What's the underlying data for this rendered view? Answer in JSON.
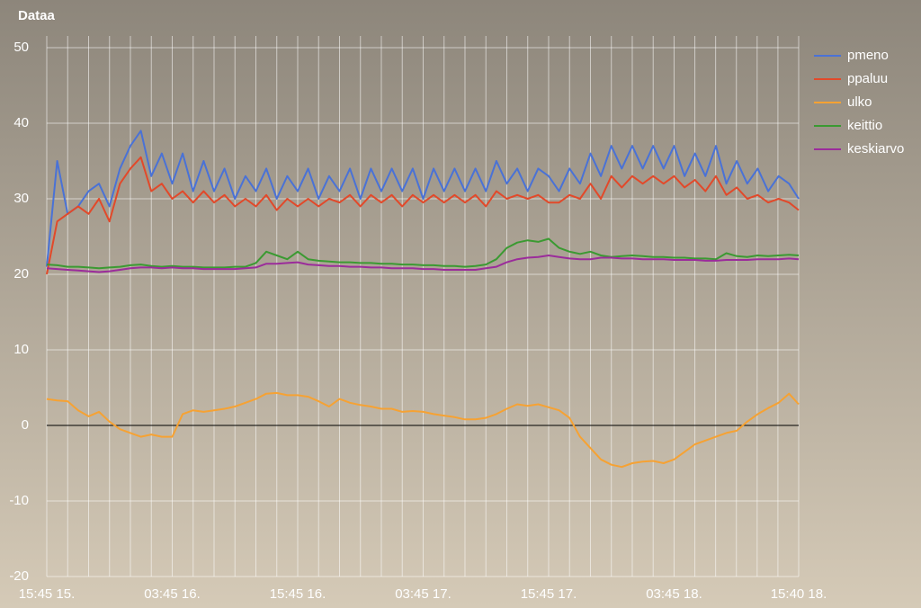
{
  "chart_data": {
    "type": "line",
    "title": "Dataa",
    "x": [
      0,
      1,
      2,
      3,
      4,
      5,
      6,
      7,
      8,
      9,
      10,
      11,
      12,
      13,
      14,
      15,
      16,
      17,
      18,
      19,
      20,
      21,
      22,
      23,
      24,
      25,
      26,
      27,
      28,
      29,
      30,
      31,
      32,
      33,
      34,
      35,
      36,
      37,
      38,
      39,
      40,
      41,
      42,
      43,
      44,
      45,
      46,
      47,
      48,
      49,
      50,
      51,
      52,
      53,
      54,
      55,
      56,
      57,
      58,
      59,
      60,
      61,
      62,
      63,
      64,
      65,
      66,
      67,
      68,
      69,
      70,
      71,
      71.917
    ],
    "series": [
      {
        "name": "pmeno",
        "color": "#4a72d6",
        "values": [
          21,
          35,
          28,
          29,
          31,
          32,
          29,
          34,
          37,
          39,
          33,
          36,
          32,
          36,
          31,
          35,
          31,
          34,
          30,
          33,
          31,
          34,
          30,
          33,
          31,
          34,
          30,
          33,
          31,
          34,
          30,
          34,
          31,
          34,
          31,
          34,
          30,
          34,
          31,
          34,
          31,
          34,
          31,
          35,
          32,
          34,
          31,
          34,
          33,
          31,
          34,
          32,
          36,
          33,
          37,
          34,
          37,
          34,
          37,
          34,
          37,
          33,
          36,
          33,
          37,
          32,
          35,
          32,
          34,
          31,
          33,
          32,
          30
        ]
      },
      {
        "name": "ppaluu",
        "color": "#e2492a",
        "values": [
          20,
          27,
          28,
          29,
          28,
          30,
          27,
          32,
          34,
          35.5,
          31,
          32,
          30,
          31,
          29.5,
          31,
          29.5,
          30.5,
          29,
          30,
          29,
          30.5,
          28.5,
          30,
          29,
          30,
          29,
          30,
          29.5,
          30.5,
          29,
          30.5,
          29.5,
          30.5,
          29,
          30.5,
          29.5,
          30.5,
          29.5,
          30.5,
          29.5,
          30.5,
          29,
          31,
          30,
          30.5,
          30,
          30.5,
          29.5,
          29.5,
          30.5,
          30,
          32,
          30,
          33,
          31.5,
          33,
          32,
          33,
          32,
          33,
          31.5,
          32.5,
          31,
          33,
          30.5,
          31.5,
          30,
          30.5,
          29.5,
          30,
          29.5,
          28.5
        ]
      },
      {
        "name": "ulko",
        "color": "#f6a233",
        "values": [
          3.5,
          3.3,
          3.2,
          2,
          1.2,
          1.8,
          0.5,
          -0.5,
          -1,
          -1.5,
          -1.2,
          -1.5,
          -1.5,
          1.5,
          2,
          1.8,
          2,
          2.2,
          2.5,
          3,
          3.5,
          4.2,
          4.3,
          4,
          4,
          3.8,
          3.2,
          2.5,
          3.5,
          3,
          2.7,
          2.5,
          2.2,
          2.2,
          1.8,
          1.9,
          1.8,
          1.5,
          1.3,
          1.1,
          0.8,
          0.8,
          1,
          1.5,
          2.2,
          2.8,
          2.6,
          2.8,
          2.4,
          2,
          1,
          -1.5,
          -3,
          -4.5,
          -5.2,
          -5.5,
          -5,
          -4.8,
          -4.7,
          -5,
          -4.5,
          -3.5,
          -2.5,
          -2,
          -1.5,
          -1,
          -0.7,
          0.5,
          1.5,
          2.3,
          3,
          4.2,
          2.8
        ]
      },
      {
        "name": "keittio",
        "color": "#3b9a32",
        "values": [
          21.3,
          21.2,
          21,
          21,
          20.9,
          20.8,
          20.9,
          21,
          21.2,
          21.3,
          21.1,
          21,
          21.1,
          21,
          21,
          20.9,
          20.9,
          20.9,
          21,
          21,
          21.5,
          23,
          22.5,
          22,
          23,
          22,
          21.8,
          21.7,
          21.6,
          21.6,
          21.5,
          21.5,
          21.4,
          21.4,
          21.3,
          21.3,
          21.2,
          21.2,
          21.1,
          21.1,
          21,
          21.1,
          21.3,
          22,
          23.5,
          24.2,
          24.5,
          24.3,
          24.7,
          23.5,
          23,
          22.7,
          23,
          22.5,
          22.3,
          22.4,
          22.5,
          22.4,
          22.3,
          22.3,
          22.2,
          22.2,
          22.1,
          22.1,
          22,
          22.8,
          22.4,
          22.3,
          22.5,
          22.4,
          22.5,
          22.6,
          22.5
        ]
      },
      {
        "name": "keskiarvo",
        "color": "#9b2c9b",
        "values": [
          20.8,
          20.7,
          20.6,
          20.5,
          20.4,
          20.3,
          20.4,
          20.6,
          20.8,
          20.9,
          20.9,
          20.8,
          20.9,
          20.8,
          20.8,
          20.7,
          20.7,
          20.7,
          20.7,
          20.8,
          20.9,
          21.4,
          21.4,
          21.5,
          21.6,
          21.3,
          21.2,
          21.1,
          21.1,
          21,
          21,
          20.9,
          20.9,
          20.8,
          20.8,
          20.8,
          20.7,
          20.7,
          20.6,
          20.6,
          20.6,
          20.6,
          20.8,
          21,
          21.6,
          22,
          22.2,
          22.3,
          22.5,
          22.3,
          22.1,
          22,
          22,
          22.2,
          22.2,
          22.1,
          22.1,
          22,
          22,
          22,
          21.9,
          21.9,
          21.9,
          21.8,
          21.8,
          21.9,
          21.9,
          21.9,
          22,
          22,
          22,
          22.1,
          22
        ]
      }
    ],
    "xlim": [
      0,
      71.917
    ],
    "xticks": [
      {
        "value": 0,
        "label": "15:45 15."
      },
      {
        "value": 12,
        "label": "03:45 16."
      },
      {
        "value": 24,
        "label": "15:45 16."
      },
      {
        "value": 36,
        "label": "03:45 17."
      },
      {
        "value": 48,
        "label": "15:45 17."
      },
      {
        "value": 60,
        "label": "03:45 18."
      },
      {
        "value": 71.917,
        "label": "15:40 18."
      }
    ],
    "ylim": [
      -20,
      50
    ],
    "yticks": [
      -20,
      -10,
      0,
      10,
      20,
      30,
      40,
      50
    ],
    "grid": true,
    "legend": "right"
  }
}
